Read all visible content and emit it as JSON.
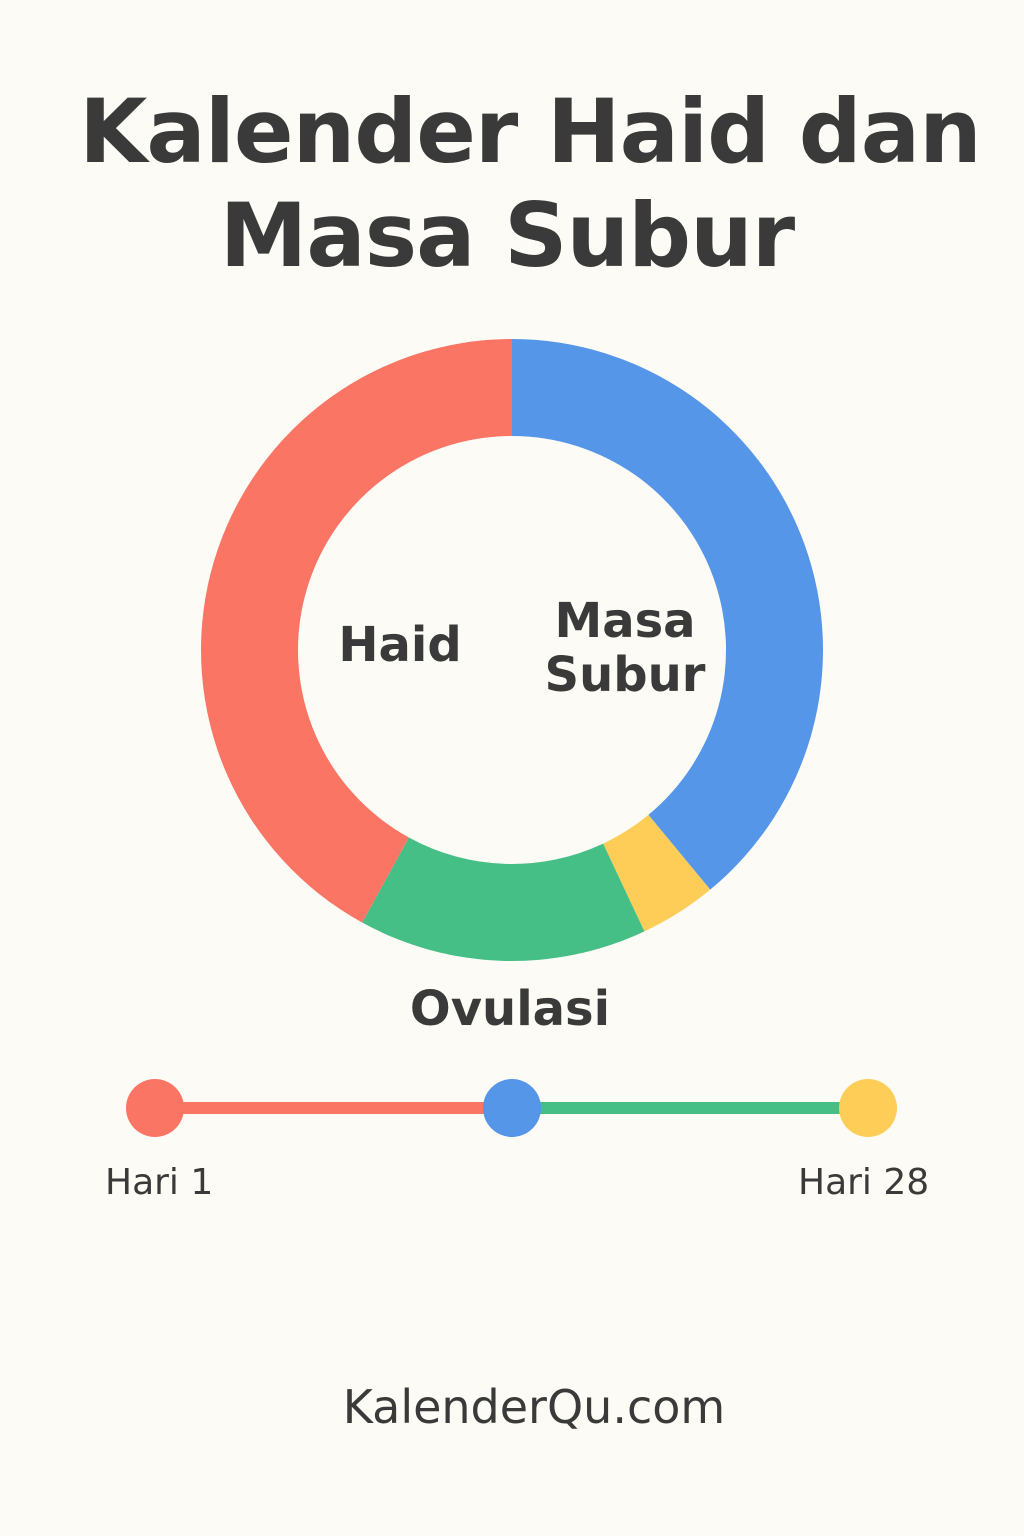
{
  "title_line1": "Kalender Haid dan",
  "title_line2": "Masa Subur",
  "chart_data": {
    "type": "pie",
    "variant": "donut",
    "start": "top",
    "direction": "clockwise",
    "unit": "percent of cycle",
    "slices": [
      {
        "label": "Masa Subur",
        "value": 39,
        "color": "#5596e8"
      },
      {
        "label": "",
        "value": 4,
        "color": "#fdcd58"
      },
      {
        "label": "",
        "value": 15,
        "color": "#46bf87"
      },
      {
        "label": "Haid",
        "value": 42,
        "color": "#fb7565"
      }
    ],
    "annotations": {
      "haid": "Haid",
      "masa_subur_1": "Masa",
      "masa_subur_2": "Subur",
      "ovulasi": "Ovulasi"
    }
  },
  "timeline": {
    "start_label": "Hari 1",
    "end_label": "Hari 28",
    "points": [
      {
        "color": "#fb7565"
      },
      {
        "color": "#5596e8"
      },
      {
        "color": "#fdcd58"
      }
    ],
    "segments": [
      {
        "color": "#fb7565"
      },
      {
        "color": "#46bf87"
      }
    ]
  },
  "footer": "KalenderQu.com"
}
